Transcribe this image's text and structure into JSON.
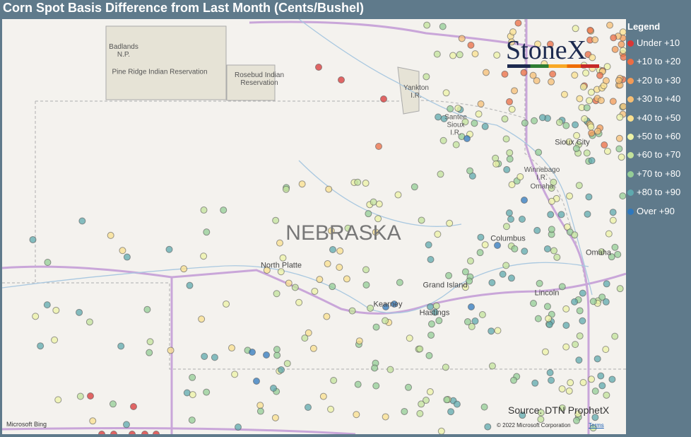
{
  "title": "Corn Spot Basis Difference from Last Month (Cents/Bushel)",
  "legend": {
    "title": "Legend",
    "items": [
      {
        "label": "Under +10",
        "color": "#d93636"
      },
      {
        "label": "+10 to +20",
        "color": "#ec6c43"
      },
      {
        "label": "+20 to +30",
        "color": "#f39a56"
      },
      {
        "label": "+30 to +40",
        "color": "#f7bf74"
      },
      {
        "label": "+40 to +50",
        "color": "#fbe08e"
      },
      {
        "label": "+50 to +60",
        "color": "#eef3a6"
      },
      {
        "label": "+60 to +70",
        "color": "#c3e39b"
      },
      {
        "label": "+70 to +80",
        "color": "#94cd96"
      },
      {
        "label": "+80 to +90",
        "color": "#5fa9ae"
      },
      {
        "label": "Over +90",
        "color": "#2f78bd"
      }
    ]
  },
  "map_labels": [
    [
      "Badlands",
      "N.P."
    ],
    [
      "Pine Ridge Indian Reservation"
    ],
    [
      "Rosebud Indian",
      "Reservation"
    ],
    [
      "Yankton",
      "I.R."
    ],
    [
      "Santee",
      "Sioux",
      "I.R."
    ],
    [
      "Sioux City"
    ],
    [
      "Winnebago",
      "I.R."
    ],
    [
      "Omaha"
    ],
    [
      "NEBRASKA"
    ],
    [
      "North Platte"
    ],
    [
      "Columbus"
    ],
    [
      "Omaha"
    ],
    [
      "Grand Island"
    ],
    [
      "Kearney"
    ],
    [
      "Hastings"
    ],
    [
      "Lincoln"
    ]
  ],
  "logo": "StoneX",
  "source": "Source: DTN ProphetX",
  "attribution": {
    "provider": "Microsoft Bing",
    "copyright": "© 2022 Microsoft Corporation",
    "terms": "Terms"
  }
}
